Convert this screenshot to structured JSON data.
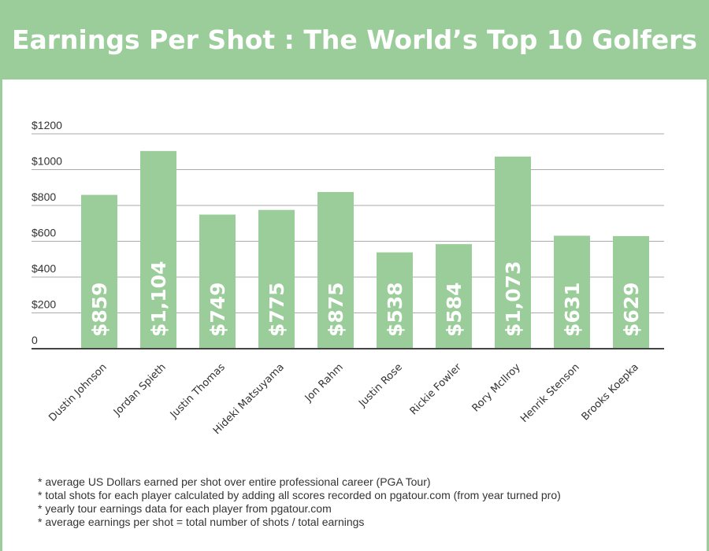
{
  "title": "Earnings Per Shot : The World’s Top 10 Golfers",
  "chart_data": {
    "type": "bar",
    "categories": [
      "Dustin Johnson",
      "Jordan Spieth",
      "Justin Thomas",
      "Hideki Matsuyama",
      "Jon Rahm",
      "Justin Rose",
      "Rickie Fowler",
      "Rory McIlroy",
      "Henrik Stenson",
      "Brooks Koepka"
    ],
    "values": [
      859,
      1104,
      749,
      775,
      875,
      538,
      584,
      1073,
      631,
      629
    ],
    "data_labels": [
      "$859",
      "$1,104",
      "$749",
      "$775",
      "$875",
      "$538",
      "$584",
      "$1,073",
      "$631",
      "$629"
    ],
    "yticks": [
      0,
      200,
      400,
      600,
      800,
      1000,
      1200
    ],
    "ytick_labels": [
      "0",
      "$200",
      "$400",
      "$600",
      "$800",
      "$1000",
      "$1200"
    ],
    "ylim": [
      0,
      1200
    ],
    "grid": true,
    "bar_color": "#9ACD99",
    "xlabel": "",
    "ylabel": ""
  },
  "notes": [
    "* average US Dollars earned per shot over entire professional career (PGA Tour)",
    "* total shots for each player calculated by adding all scores recorded on pgatour.com (from year turned pro)",
    "* yearly tour earnings data for each player from pgatour.com",
    "* average earnings per shot = total number of shots / total earnings"
  ]
}
